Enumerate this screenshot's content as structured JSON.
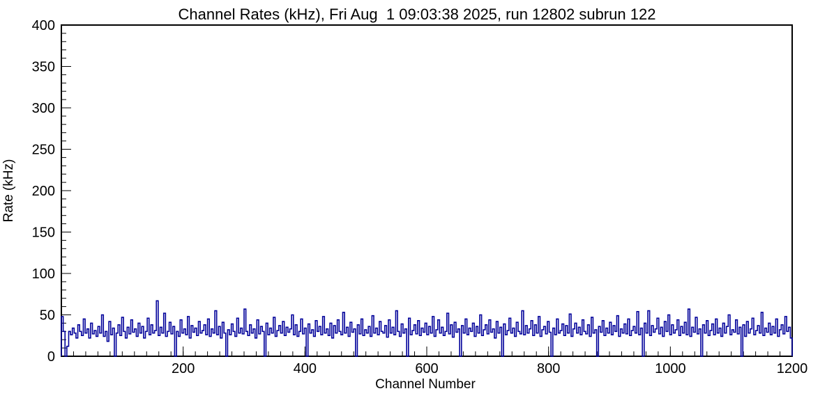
{
  "title": "Channel Rates (kHz), Fri Aug  1 09:03:38 2025, run 12802 subrun 122",
  "chart_data": {
    "type": "line",
    "subtype": "step-histogram",
    "title": "Channel Rates (kHz), Fri Aug  1 09:03:38 2025, run 12802 subrun 122",
    "xlabel": "Channel Number",
    "ylabel": "Rate (kHz)",
    "xlim": [
      0,
      1200
    ],
    "ylim": [
      0,
      400
    ],
    "x_major_ticks": [
      200,
      400,
      600,
      800,
      1000,
      1200
    ],
    "x_minor_step": 20,
    "y_major_ticks": [
      0,
      50,
      100,
      150,
      200,
      250,
      300,
      350,
      400
    ],
    "y_minor_step": 10,
    "grid": false,
    "legend": "none",
    "line_color": "#00009a",
    "frame_color": "#000000",
    "background_color": "#ffffff",
    "bins": 400,
    "channels_per_bin": 3,
    "values": [
      48,
      30,
      0,
      12,
      30,
      26,
      34,
      28,
      22,
      38,
      30,
      25,
      45,
      28,
      33,
      22,
      40,
      27,
      31,
      24,
      36,
      28,
      50,
      24,
      30,
      18,
      42,
      26,
      34,
      0,
      28,
      38,
      25,
      47,
      30,
      22,
      35,
      27,
      44,
      29,
      33,
      24,
      40,
      28,
      36,
      22,
      30,
      46,
      26,
      38,
      28,
      31,
      67,
      25,
      35,
      28,
      52,
      24,
      30,
      41,
      27,
      36,
      0,
      30,
      24,
      44,
      28,
      33,
      26,
      48,
      22,
      37,
      29,
      34,
      25,
      42,
      28,
      31,
      38,
      26,
      45,
      24,
      33,
      28,
      55,
      26,
      36,
      22,
      41,
      28,
      0,
      32,
      26,
      39,
      30,
      24,
      46,
      28,
      34,
      27,
      57,
      30,
      25,
      38,
      28,
      33,
      22,
      44,
      27,
      36,
      30,
      0,
      40,
      26,
      34,
      28,
      47,
      24,
      31,
      37,
      28,
      42,
      25,
      35,
      29,
      33,
      50,
      26,
      38,
      24,
      30,
      45,
      27,
      34,
      0,
      39,
      28,
      32,
      24,
      43,
      30,
      36,
      26,
      48,
      28,
      33,
      25,
      40,
      22,
      37,
      28,
      44,
      30,
      26,
      53,
      28,
      35,
      24,
      41,
      29,
      33,
      0,
      38,
      27,
      45,
      25,
      32,
      28,
      36,
      24,
      49,
      28,
      34,
      26,
      42,
      30,
      28,
      37,
      23,
      44,
      28,
      35,
      26,
      55,
      30,
      24,
      39,
      28,
      33,
      0,
      46,
      26,
      31,
      38,
      27,
      43,
      25,
      34,
      29,
      40,
      26,
      36,
      28,
      48,
      24,
      32,
      44,
      28,
      35,
      25,
      30,
      52,
      27,
      38,
      23,
      41,
      29,
      33,
      0,
      37,
      28,
      45,
      26,
      34,
      30,
      40,
      24,
      36,
      28,
      50,
      25,
      32,
      38,
      27,
      44,
      29,
      33,
      22,
      42,
      28,
      35,
      0,
      39,
      26,
      31,
      46,
      28,
      34,
      24,
      41,
      30,
      27,
      55,
      26,
      37,
      28,
      33,
      43,
      25,
      38,
      28,
      48,
      24,
      32,
      36,
      27,
      42,
      29,
      0,
      34,
      26,
      45,
      28,
      31,
      39,
      25,
      37,
      28,
      51,
      24,
      33,
      40,
      28,
      35,
      26,
      44,
      30,
      27,
      38,
      24,
      47,
      28,
      32,
      0,
      36,
      29,
      43,
      25,
      34,
      28,
      41,
      26,
      37,
      30,
      49,
      24,
      33,
      28,
      39,
      27,
      45,
      25,
      31,
      36,
      28,
      54,
      26,
      34,
      0,
      40,
      28,
      55,
      25,
      37,
      29,
      33,
      46,
      27,
      35,
      24,
      42,
      30,
      50,
      26,
      38,
      28,
      32,
      44,
      25,
      36,
      28,
      41,
      26,
      57,
      24,
      35,
      29,
      47,
      27,
      33,
      0,
      38,
      28,
      43,
      25,
      31,
      39,
      26,
      45,
      28,
      34,
      24,
      40,
      28,
      36,
      50,
      26,
      32,
      29,
      44,
      27,
      35,
      0,
      38,
      24,
      42,
      28,
      33,
      46,
      26,
      31,
      37,
      28,
      53,
      25,
      34,
      29,
      40,
      26,
      36,
      28,
      45,
      24,
      32,
      38,
      27,
      48,
      30,
      35,
      22
    ]
  }
}
